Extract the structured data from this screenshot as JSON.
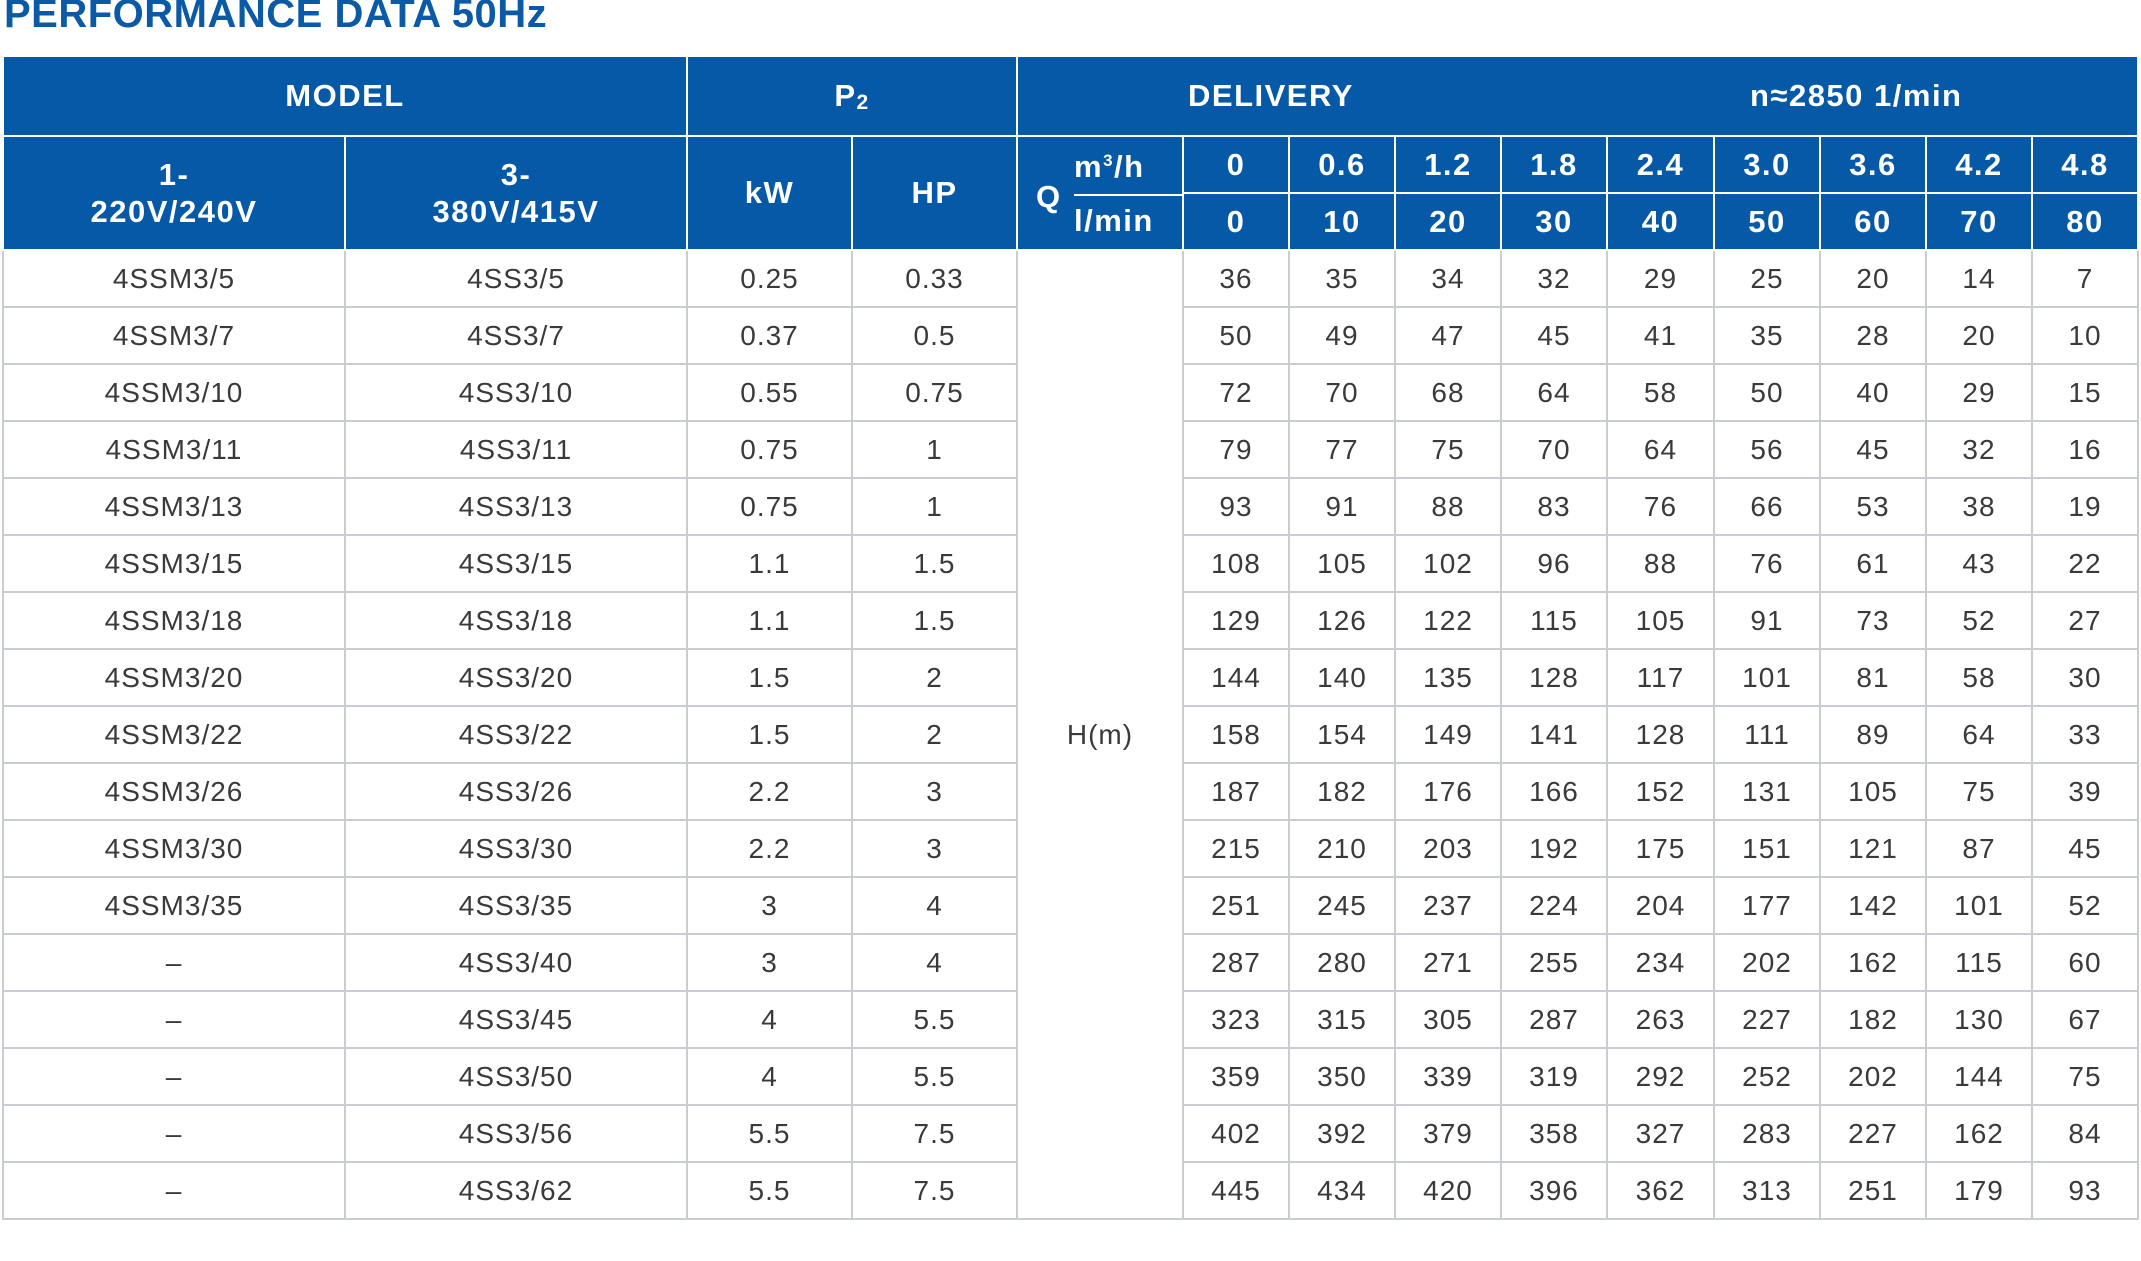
{
  "title": "PERFORMANCE DATA 50Hz",
  "header": {
    "model": "MODEL",
    "p2_letter": "P",
    "p2_sub": "2",
    "delivery": "DELIVERY",
    "speed": "n≈2850  1/min",
    "single_phase_line1": "1-",
    "single_phase_line2": "220V/240V",
    "three_phase_line1": "3-",
    "three_phase_line2": "380V/415V",
    "kw": "kW",
    "hp": "HP",
    "q_label": "Q",
    "q_unit_top": "m",
    "q_unit_top_sup": "3",
    "q_unit_top_tail": "/h",
    "q_unit_bottom": "l/min",
    "flow_m3h": [
      "0",
      "0.6",
      "1.2",
      "1.8",
      "2.4",
      "3.0",
      "3.6",
      "4.2",
      "4.8"
    ],
    "flow_lmin": [
      "0",
      "10",
      "20",
      "30",
      "40",
      "50",
      "60",
      "70",
      "80"
    ]
  },
  "head_label": "H(m)",
  "rows": [
    {
      "single": "4SSM3/5",
      "three": "4SS3/5",
      "kw": "0.25",
      "hp": "0.33",
      "h": [
        "36",
        "35",
        "34",
        "32",
        "29",
        "25",
        "20",
        "14",
        "7"
      ]
    },
    {
      "single": "4SSM3/7",
      "three": "4SS3/7",
      "kw": "0.37",
      "hp": "0.5",
      "h": [
        "50",
        "49",
        "47",
        "45",
        "41",
        "35",
        "28",
        "20",
        "10"
      ]
    },
    {
      "single": "4SSM3/10",
      "three": "4SS3/10",
      "kw": "0.55",
      "hp": "0.75",
      "h": [
        "72",
        "70",
        "68",
        "64",
        "58",
        "50",
        "40",
        "29",
        "15"
      ]
    },
    {
      "single": "4SSM3/11",
      "three": "4SS3/11",
      "kw": "0.75",
      "hp": "1",
      "h": [
        "79",
        "77",
        "75",
        "70",
        "64",
        "56",
        "45",
        "32",
        "16"
      ]
    },
    {
      "single": "4SSM3/13",
      "three": "4SS3/13",
      "kw": "0.75",
      "hp": "1",
      "h": [
        "93",
        "91",
        "88",
        "83",
        "76",
        "66",
        "53",
        "38",
        "19"
      ]
    },
    {
      "single": "4SSM3/15",
      "three": "4SS3/15",
      "kw": "1.1",
      "hp": "1.5",
      "h": [
        "108",
        "105",
        "102",
        "96",
        "88",
        "76",
        "61",
        "43",
        "22"
      ]
    },
    {
      "single": "4SSM3/18",
      "three": "4SS3/18",
      "kw": "1.1",
      "hp": "1.5",
      "h": [
        "129",
        "126",
        "122",
        "115",
        "105",
        "91",
        "73",
        "52",
        "27"
      ]
    },
    {
      "single": "4SSM3/20",
      "three": "4SS3/20",
      "kw": "1.5",
      "hp": "2",
      "h": [
        "144",
        "140",
        "135",
        "128",
        "117",
        "101",
        "81",
        "58",
        "30"
      ]
    },
    {
      "single": "4SSM3/22",
      "three": "4SS3/22",
      "kw": "1.5",
      "hp": "2",
      "h": [
        "158",
        "154",
        "149",
        "141",
        "128",
        "111",
        "89",
        "64",
        "33"
      ]
    },
    {
      "single": "4SSM3/26",
      "three": "4SS3/26",
      "kw": "2.2",
      "hp": "3",
      "h": [
        "187",
        "182",
        "176",
        "166",
        "152",
        "131",
        "105",
        "75",
        "39"
      ]
    },
    {
      "single": "4SSM3/30",
      "three": "4SS3/30",
      "kw": "2.2",
      "hp": "3",
      "h": [
        "215",
        "210",
        "203",
        "192",
        "175",
        "151",
        "121",
        "87",
        "45"
      ]
    },
    {
      "single": "4SSM3/35",
      "three": "4SS3/35",
      "kw": "3",
      "hp": "4",
      "h": [
        "251",
        "245",
        "237",
        "224",
        "204",
        "177",
        "142",
        "101",
        "52"
      ]
    },
    {
      "single": "–",
      "three": "4SS3/40",
      "kw": "3",
      "hp": "4",
      "h": [
        "287",
        "280",
        "271",
        "255",
        "234",
        "202",
        "162",
        "115",
        "60"
      ]
    },
    {
      "single": "–",
      "three": "4SS3/45",
      "kw": "4",
      "hp": "5.5",
      "h": [
        "323",
        "315",
        "305",
        "287",
        "263",
        "227",
        "182",
        "130",
        "67"
      ]
    },
    {
      "single": "–",
      "three": "4SS3/50",
      "kw": "4",
      "hp": "5.5",
      "h": [
        "359",
        "350",
        "339",
        "319",
        "292",
        "252",
        "202",
        "144",
        "75"
      ]
    },
    {
      "single": "–",
      "three": "4SS3/56",
      "kw": "5.5",
      "hp": "7.5",
      "h": [
        "402",
        "392",
        "379",
        "358",
        "327",
        "283",
        "227",
        "162",
        "84"
      ]
    },
    {
      "single": "–",
      "three": "4SS3/62",
      "kw": "5.5",
      "hp": "7.5",
      "h": [
        "445",
        "434",
        "420",
        "396",
        "362",
        "313",
        "251",
        "179",
        "93"
      ]
    }
  ],
  "colors": {
    "header_bg": "#0559a6",
    "title": "#0a5aa6",
    "grid": "#c9cdd2",
    "text": "#3a3a3a"
  }
}
